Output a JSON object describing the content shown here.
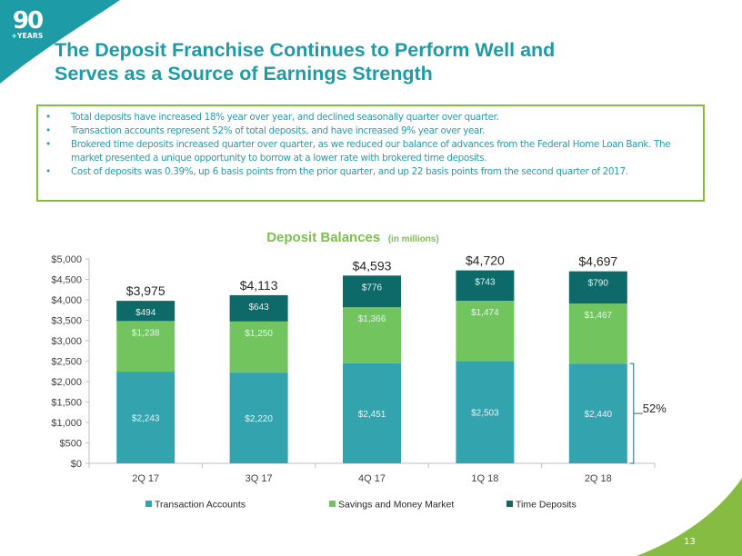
{
  "logo": {
    "number": "90",
    "subtitle": "+YEARS"
  },
  "slide": {
    "title_line1": "The Deposit Franchise Continues to Perform Well and",
    "title_line2": "Serves as a Source of Earnings Strength",
    "page_number": "13"
  },
  "bullets": [
    {
      "text": "Total deposits have increased 18% year over year, and declined seasonally quarter over quarter."
    },
    {
      "text": "Transaction accounts represent 52% of total deposits, and have increased 9% year over year."
    },
    {
      "text": "Brokered time deposits increased quarter over quarter, as we reduced our balance of advances from the Federal Home Loan Bank.  The market presented a unique opportunity to borrow at a lower rate with brokered time deposits."
    },
    {
      "text": "Cost of deposits was 0.39%, up 6 basis points from the prior quarter, and up 22 basis points from the second quarter of 2017."
    }
  ],
  "colors": {
    "brand_teal": "#1d9ba6",
    "brand_green": "#86bc41",
    "transaction": "#33a3ae",
    "savings": "#72c55e",
    "time": "#0d6a68"
  },
  "chart_data": {
    "type": "bar",
    "stacked": true,
    "title": "Deposit Balances",
    "title_suffix": "(in millions)",
    "xlabel": "",
    "ylabel": "",
    "ylim": [
      0,
      5000
    ],
    "yticks": [
      0,
      500,
      1000,
      1500,
      2000,
      2500,
      3000,
      3500,
      4000,
      4500,
      5000
    ],
    "ytick_labels": [
      "$0",
      "$500",
      "$1,000",
      "$1,500",
      "$2,000",
      "$2,500",
      "$3,000",
      "$3,500",
      "$4,000",
      "$4,500",
      "$5,000"
    ],
    "categories": [
      "2Q 17",
      "3Q 17",
      "4Q 17",
      "1Q 18",
      "2Q 18"
    ],
    "series": [
      {
        "name": "Transaction Accounts",
        "values": [
          2243,
          2220,
          2451,
          2503,
          2440
        ],
        "labels": [
          "$2,243",
          "$2,220",
          "$2,451",
          "$2,503",
          "$2,440"
        ]
      },
      {
        "name": "Savings and Money Market",
        "values": [
          1238,
          1250,
          1366,
          1474,
          1467
        ],
        "labels": [
          "$1,238",
          "$1,250",
          "$1,366",
          "$1,474",
          "$1,467"
        ]
      },
      {
        "name": "Time Deposits",
        "values": [
          494,
          643,
          776,
          743,
          790
        ],
        "labels": [
          "$494",
          "$643",
          "$776",
          "$743",
          "$790"
        ]
      }
    ],
    "totals": [
      3975,
      4113,
      4593,
      4720,
      4697
    ],
    "total_labels": [
      "$3,975",
      "$4,113",
      "$4,593",
      "$4,720",
      "$4,697"
    ],
    "annotation": {
      "text": "52%",
      "category": "2Q 18",
      "series": "Transaction Accounts"
    },
    "legend": "bottom",
    "grid": false
  }
}
